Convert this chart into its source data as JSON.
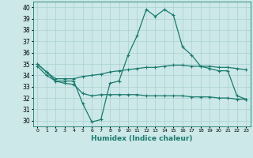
{
  "xlabel": "Humidex (Indice chaleur)",
  "x": [
    0,
    1,
    2,
    3,
    4,
    5,
    6,
    7,
    8,
    9,
    10,
    11,
    12,
    13,
    14,
    15,
    16,
    17,
    18,
    19,
    20,
    21,
    22,
    23
  ],
  "line1": [
    35.0,
    34.3,
    33.5,
    33.5,
    33.5,
    31.5,
    29.9,
    30.1,
    33.3,
    33.5,
    35.8,
    37.5,
    39.8,
    39.2,
    39.8,
    39.3,
    36.5,
    35.8,
    34.8,
    34.6,
    34.4,
    34.4,
    32.2,
    31.9
  ],
  "line2": [
    35.0,
    34.3,
    33.7,
    33.7,
    33.7,
    33.9,
    34.0,
    34.1,
    34.3,
    34.4,
    34.5,
    34.6,
    34.7,
    34.7,
    34.8,
    34.9,
    34.9,
    34.8,
    34.8,
    34.8,
    34.7,
    34.7,
    34.6,
    34.5
  ],
  "line3": [
    34.8,
    34.0,
    33.5,
    33.3,
    33.2,
    32.4,
    32.2,
    32.3,
    32.3,
    32.3,
    32.3,
    32.3,
    32.2,
    32.2,
    32.2,
    32.2,
    32.2,
    32.1,
    32.1,
    32.1,
    32.0,
    32.0,
    31.9,
    31.9
  ],
  "ylim": [
    29.5,
    40.5
  ],
  "yticks": [
    30,
    31,
    32,
    33,
    34,
    35,
    36,
    37,
    38,
    39,
    40
  ],
  "line_color": "#1a7a6e",
  "bg_color": "#cce8e8",
  "grid_color": "#aad0d0"
}
